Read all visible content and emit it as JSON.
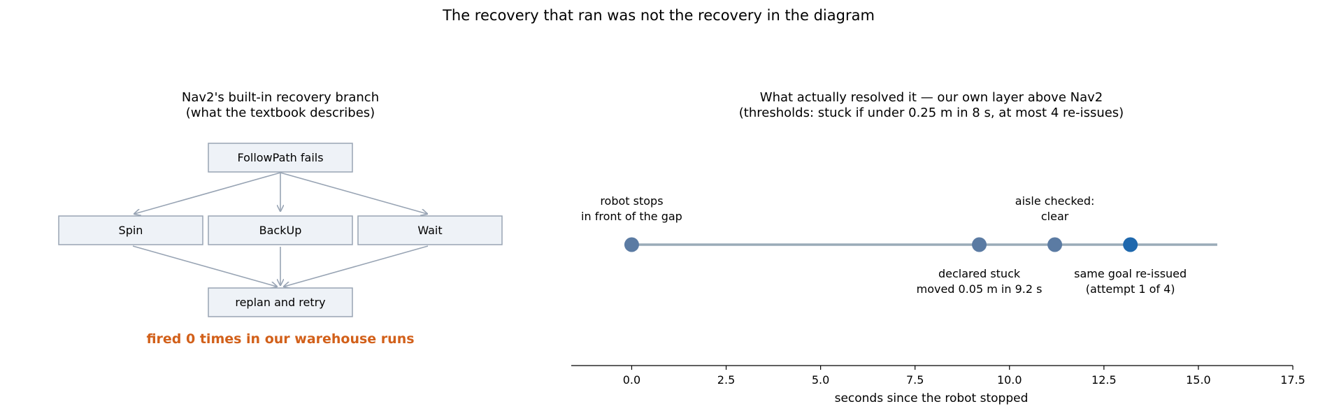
{
  "figure": {
    "title": "The recovery that ran was not the recovery in the diagram"
  },
  "left_panel": {
    "title_line1": "Nav2's built-in recovery branch",
    "title_line2": "(what the textbook describes)",
    "nodes": {
      "trigger": "FollowPath fails",
      "spin": "Spin",
      "backup": "BackUp",
      "wait": "Wait",
      "retry": "replan and retry"
    },
    "note": "fired 0 times in our warehouse runs",
    "note_color": "#d2601a"
  },
  "right_panel": {
    "title_line1": "What actually resolved it — our own layer above Nav2",
    "title_line2": "(thresholds: stuck if under 0.25 m in 8 s, at most 4 re-issues)",
    "events": [
      {
        "label_line1": "robot stops",
        "label_line2": "in front of the gap"
      },
      {
        "label_line1": "declared stuck",
        "label_line2": "moved 0.05 m in 9.2 s"
      },
      {
        "label_line1": "aisle checked:",
        "label_line2": "clear"
      },
      {
        "label_line1": "same goal re-issued",
        "label_line2": "(attempt 1 of 4)"
      }
    ],
    "colors": {
      "event": "#5b7ba3",
      "final_event": "#1f68ad",
      "track": "#9aabb8"
    }
  },
  "chart_data": {
    "type": "scatter",
    "title": "What actually resolved it — our own layer above Nav2 (thresholds: stuck if under 0.25 m in 8 s, at most 4 re-issues)",
    "xlabel": "seconds since the robot stopped",
    "xlim": [
      -1.6,
      17.5
    ],
    "xticks": [
      "0.0",
      "2.5",
      "5.0",
      "7.5",
      "10.0",
      "12.5",
      "15.0",
      "17.5"
    ],
    "xtick_values": [
      0,
      2.5,
      5,
      7.5,
      10,
      12.5,
      15,
      17.5
    ],
    "track_end": 15.5,
    "events_x": [
      0,
      9.2,
      11.2,
      13.2
    ]
  }
}
